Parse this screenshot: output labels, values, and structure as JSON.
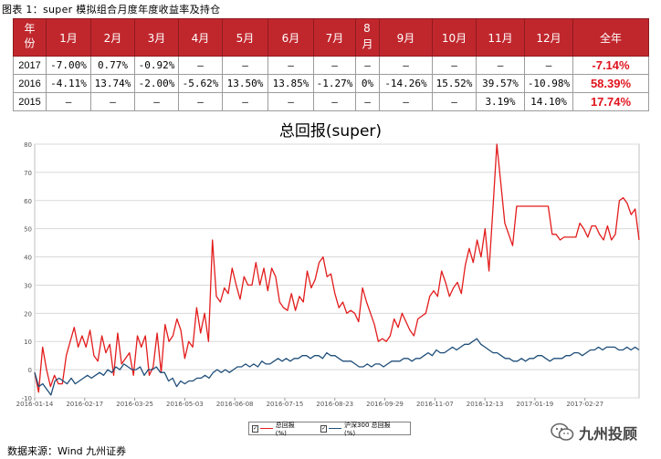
{
  "caption": "图表 1：super 模拟组合月度年度收益率及持仓",
  "table": {
    "headers": [
      "年份",
      "1月",
      "2月",
      "3月",
      "4月",
      "5月",
      "6月",
      "7月",
      "8月",
      "9月",
      "10月",
      "11月",
      "12月",
      "全年"
    ],
    "rows": [
      {
        "year": "2017",
        "cells": [
          "-7.00%",
          "0.77%",
          "-0.92%",
          "–",
          "–",
          "–",
          "–",
          "–",
          "–",
          "–",
          "–",
          "–"
        ],
        "total": "-7.14%"
      },
      {
        "year": "2016",
        "cells": [
          "-4.11%",
          "13.74%",
          "-2.00%",
          "-5.62%",
          "13.50%",
          "13.85%",
          "-1.27%",
          "0%",
          "-14.26%",
          "15.52%",
          "39.57%",
          "-10.98%"
        ],
        "total": "58.39%"
      },
      {
        "year": "2015",
        "cells": [
          "–",
          "–",
          "–",
          "–",
          "–",
          "–",
          "–",
          "–",
          "–",
          "–",
          "3.19%",
          "14.10%"
        ],
        "total": "17.74%"
      }
    ]
  },
  "source": "数据来源：Wind  九州证券",
  "brand": "九州投顾",
  "colors": {
    "header_bg": "#c0272d",
    "series_super": "#e31c1c",
    "series_hs300": "#1f4e79",
    "grid": "#d9d9d9"
  },
  "chart_data": {
    "type": "line",
    "title": "总回报(super)",
    "xlabel": "",
    "ylabel": "",
    "ylim": [
      -10,
      80
    ],
    "yticks": [
      -10,
      0,
      10,
      20,
      30,
      40,
      50,
      60,
      70,
      80
    ],
    "xtick_labels": [
      "2016-01-14",
      "2016-02-17",
      "2016-03-25",
      "2016-05-03",
      "2016-06-08",
      "2016-07-15",
      "2016-08-23",
      "2016-09-29",
      "2016-11-07",
      "2016-12-13",
      "2017-01-19",
      "2017-02-27"
    ],
    "grid": true,
    "legend_position": "bottom",
    "series": [
      {
        "name": "总回报(%)",
        "color": "#e31c1c",
        "values": [
          -1,
          -8,
          8,
          0,
          -6,
          -2,
          -5,
          -5,
          5,
          10,
          15,
          8,
          12,
          8,
          14,
          5,
          3,
          12,
          6,
          9,
          -2,
          13,
          2,
          4,
          6,
          -2,
          12,
          8,
          12,
          -2,
          1,
          13,
          -1,
          16,
          10,
          12,
          18,
          14,
          4,
          10,
          8,
          22,
          13,
          20,
          10,
          46,
          26,
          24,
          29,
          27,
          36,
          30,
          25,
          33,
          30,
          30,
          38,
          30,
          36,
          28,
          36,
          33,
          24,
          22,
          21,
          27,
          21,
          26,
          24,
          35,
          29,
          32,
          38,
          40,
          33,
          34,
          27,
          22,
          24,
          20,
          21,
          20,
          17,
          29,
          24,
          20,
          16,
          10,
          11,
          10,
          12,
          18,
          15,
          20,
          17,
          14,
          12,
          18,
          19,
          20,
          26,
          28,
          26,
          35,
          31,
          26,
          29,
          31,
          27,
          37,
          43,
          38,
          46,
          40,
          50,
          35,
          57,
          80,
          66,
          52,
          48,
          44,
          58,
          58,
          58,
          58,
          58,
          58,
          58,
          58,
          58,
          48,
          48,
          46,
          47,
          47,
          47,
          47,
          52,
          50,
          47,
          51,
          51,
          48,
          46,
          51,
          46,
          48,
          60,
          61,
          59,
          55,
          57,
          46
        ]
      },
      {
        "name": "沪深300 总回报(%)",
        "color": "#1f4e79",
        "values": [
          -1,
          -6,
          -5,
          -7,
          -9,
          -4,
          -3,
          -4,
          -5,
          -3,
          -5,
          -4,
          -3,
          -2,
          -3,
          -2,
          -1,
          -2,
          0,
          -1,
          1,
          0,
          2,
          1,
          0,
          0,
          1,
          -2,
          0,
          0,
          1,
          -1,
          -1,
          -4,
          -3,
          -6,
          -4,
          -5,
          -4,
          -4,
          -3,
          -3,
          -2,
          -3,
          -1,
          0,
          -1,
          0,
          -1,
          0,
          1,
          1,
          2,
          1,
          2,
          1,
          3,
          2,
          2,
          3,
          4,
          3,
          4,
          3,
          4,
          4,
          5,
          5,
          4,
          5,
          5,
          4,
          6,
          5,
          5,
          4,
          3,
          3,
          3,
          2,
          1,
          1,
          2,
          1,
          2,
          2,
          1,
          2,
          3,
          3,
          3,
          4,
          4,
          3,
          4,
          4,
          5,
          6,
          5,
          7,
          6,
          6,
          7,
          8,
          7,
          8,
          9,
          9,
          10,
          11,
          9,
          8,
          7,
          6,
          6,
          5,
          4,
          4,
          3,
          3,
          4,
          3,
          4,
          4,
          5,
          5,
          4,
          3,
          4,
          4,
          4,
          5,
          5,
          6,
          6,
          5,
          6,
          7,
          7,
          8,
          7,
          8,
          8,
          8,
          7,
          7,
          8,
          7,
          8,
          7
        ]
      }
    ]
  }
}
